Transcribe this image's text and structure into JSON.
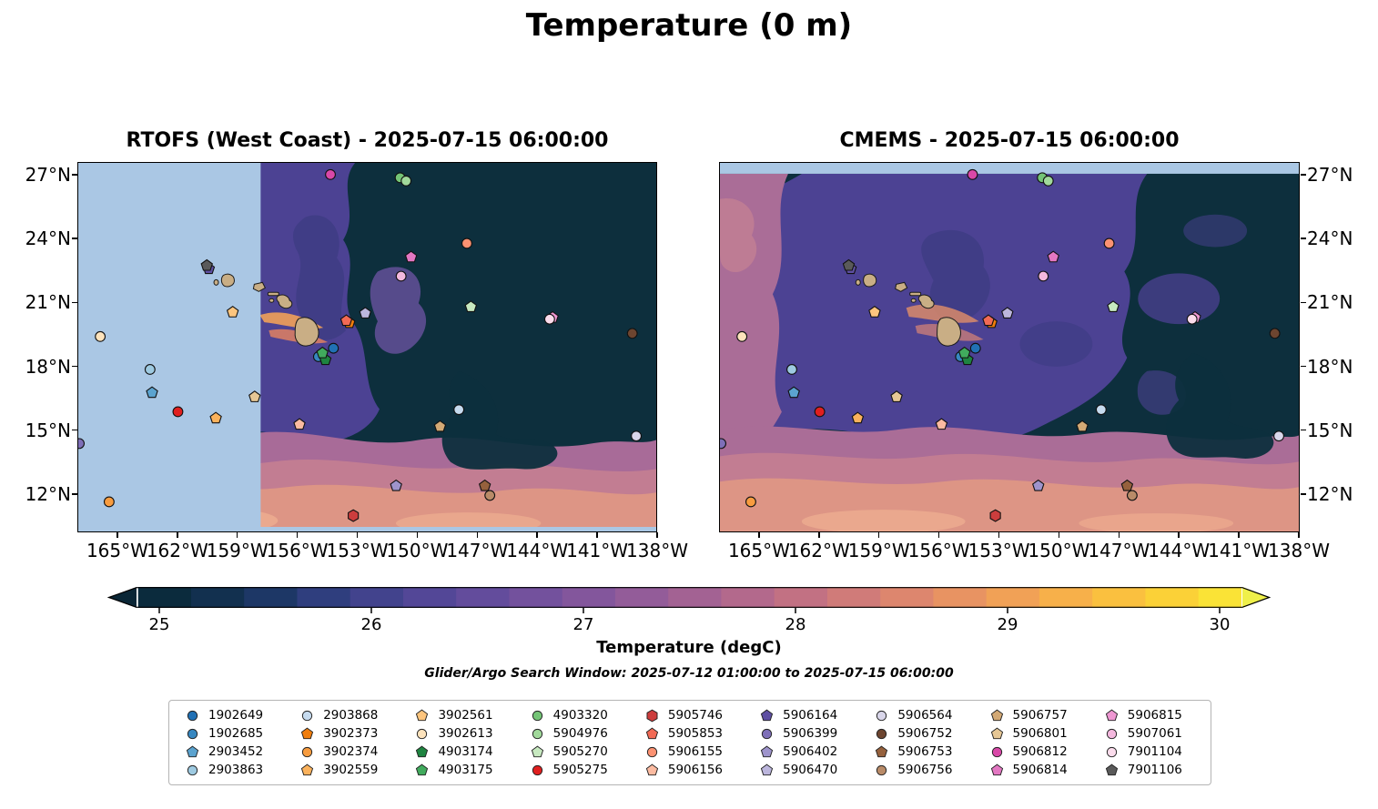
{
  "chart_data": {
    "type": "heatmap",
    "title": "Temperature (0 m)",
    "panels": [
      {
        "title": "RTOFS (West Coast) - 2025-07-15 06:00:00",
        "model": "RTOFS (West Coast)",
        "timestamp": "2025-07-15 06:00:00",
        "no_data": "light-blue region west of ~158W"
      },
      {
        "title": "CMEMS - 2025-07-15 06:00:00",
        "model": "CMEMS",
        "timestamp": "2025-07-15 06:00:00",
        "no_data": "light-blue strip north of ~27.2N"
      }
    ],
    "lon_ticks_w": [
      165,
      162,
      159,
      156,
      153,
      150,
      147,
      144,
      141,
      138
    ],
    "lon_tick_labels": [
      "165°W",
      "162°W",
      "159°W",
      "156°W",
      "153°W",
      "150°W",
      "147°W",
      "144°W",
      "141°W",
      "138°W"
    ],
    "lat_ticks_n": [
      27,
      24,
      21,
      18,
      15,
      12
    ],
    "lat_tick_labels": [
      "27°N",
      "24°N",
      "21°N",
      "18°N",
      "15°N",
      "12°N"
    ],
    "lon_range_w": [
      167,
      138
    ],
    "lat_range_n": [
      10.2,
      27.6
    ],
    "map_colors": {
      "no_data": "#aac7e4",
      "land": "#c9ae85",
      "coast": "#1b1b1b",
      "cold_base": "#0d2f3d"
    },
    "colorbar": {
      "label": "Temperature (degC)",
      "ticks": [
        25,
        26,
        27,
        28,
        29,
        30
      ],
      "range": [
        24.9,
        30.1
      ],
      "extend": "both",
      "under_color": "#0a2636",
      "over_color": "#eff04a",
      "stops": [
        [
          24.9,
          "#0b2b3d"
        ],
        [
          25.15,
          "#12304f"
        ],
        [
          25.4,
          "#1d3766"
        ],
        [
          25.65,
          "#2f3e7e"
        ],
        [
          25.9,
          "#42438d"
        ],
        [
          26.15,
          "#534797"
        ],
        [
          26.4,
          "#634c9c"
        ],
        [
          26.65,
          "#73519d"
        ],
        [
          26.9,
          "#83569c"
        ],
        [
          27.15,
          "#935c99"
        ],
        [
          27.4,
          "#a36293"
        ],
        [
          27.65,
          "#b3698c"
        ],
        [
          27.9,
          "#c27183"
        ],
        [
          28.15,
          "#d07b79"
        ],
        [
          28.4,
          "#dd866e"
        ],
        [
          28.65,
          "#e89362"
        ],
        [
          28.9,
          "#f1a156"
        ],
        [
          29.15,
          "#f7b04a"
        ],
        [
          29.4,
          "#fac03f"
        ],
        [
          29.65,
          "#fbd137"
        ],
        [
          29.9,
          "#fae336"
        ],
        [
          30.1,
          "#f6ef3c"
        ]
      ]
    },
    "search_window": "Glider/Argo Search Window: 2025-07-12 01:00:00 to 2025-07-15 06:00:00",
    "floats": [
      {
        "id": "1902649",
        "shape": "circle",
        "color": "#2171b5",
        "lon_w": 154.2,
        "lat_n": 18.85
      },
      {
        "id": "1902685",
        "shape": "circle",
        "color": "#3787c0",
        "lon_w": 154.95,
        "lat_n": 18.45
      },
      {
        "id": "2903452",
        "shape": "pentagon",
        "color": "#5ba3cf",
        "lon_w": 163.3,
        "lat_n": 16.75
      },
      {
        "id": "2903863",
        "shape": "circle",
        "color": "#9ecae1",
        "lon_w": 163.4,
        "lat_n": 17.85
      },
      {
        "id": "2903868",
        "shape": "circle",
        "color": "#c6dbef",
        "lon_w": 147.9,
        "lat_n": 15.95
      },
      {
        "id": "3902373",
        "shape": "pentagon",
        "color": "#f07d0c",
        "lon_w": 153.4,
        "lat_n": 20.05
      },
      {
        "id": "3902374",
        "shape": "circle",
        "color": "#f89c3f",
        "lon_w": 165.45,
        "lat_n": 11.6
      },
      {
        "id": "3902559",
        "shape": "pentagon",
        "color": "#fbb25c",
        "lon_w": 160.1,
        "lat_n": 15.55
      },
      {
        "id": "3902561",
        "shape": "pentagon",
        "color": "#fdc57e",
        "lon_w": 159.25,
        "lat_n": 20.55
      },
      {
        "id": "3902613",
        "shape": "circle",
        "color": "#fde3bc",
        "lon_w": 165.9,
        "lat_n": 19.4
      },
      {
        "id": "4903174",
        "shape": "pentagon",
        "color": "#1e8440",
        "lon_w": 154.6,
        "lat_n": 18.3
      },
      {
        "id": "4903175",
        "shape": "pentagon",
        "color": "#41ab5d",
        "lon_w": 154.75,
        "lat_n": 18.62
      },
      {
        "id": "4903320",
        "shape": "circle",
        "color": "#74c476",
        "lon_w": 150.85,
        "lat_n": 26.9
      },
      {
        "id": "5904976",
        "shape": "circle",
        "color": "#a1d99b",
        "lon_w": 150.55,
        "lat_n": 26.75
      },
      {
        "id": "5905270",
        "shape": "pentagon",
        "color": "#c7e9c0",
        "lon_w": 147.3,
        "lat_n": 20.8
      },
      {
        "id": "5905275",
        "shape": "circle",
        "color": "#e01f1f",
        "lon_w": 162.0,
        "lat_n": 15.85
      },
      {
        "id": "5905746",
        "shape": "hexagon",
        "color": "#cc3d3d",
        "lon_w": 153.2,
        "lat_n": 10.95
      },
      {
        "id": "5905853",
        "shape": "pentagon",
        "color": "#f26a55",
        "lon_w": 153.55,
        "lat_n": 20.15
      },
      {
        "id": "5906155",
        "shape": "circle",
        "color": "#fc9272",
        "lon_w": 147.5,
        "lat_n": 23.8
      },
      {
        "id": "5906156",
        "shape": "pentagon",
        "color": "#fcbba1",
        "lon_w": 155.9,
        "lat_n": 15.25
      },
      {
        "id": "5906164",
        "shape": "pentagon",
        "color": "#5e4fa2",
        "lon_w": 160.45,
        "lat_n": 22.6
      },
      {
        "id": "5906399",
        "shape": "circle",
        "color": "#7e6fb8",
        "lon_w": 166.95,
        "lat_n": 14.35
      },
      {
        "id": "5906402",
        "shape": "pentagon",
        "color": "#9e94cc",
        "lon_w": 151.05,
        "lat_n": 12.35
      },
      {
        "id": "5906470",
        "shape": "pentagon",
        "color": "#bcb6dd",
        "lon_w": 152.6,
        "lat_n": 20.5
      },
      {
        "id": "5906564",
        "shape": "circle",
        "color": "#d9d6ea",
        "lon_w": 139.0,
        "lat_n": 14.7
      },
      {
        "id": "5906752",
        "shape": "circle",
        "color": "#6d4530",
        "lon_w": 139.2,
        "lat_n": 19.55
      },
      {
        "id": "5906753",
        "shape": "pentagon",
        "color": "#96613d",
        "lon_w": 146.6,
        "lat_n": 12.35
      },
      {
        "id": "5906756",
        "shape": "circle",
        "color": "#b98b68",
        "lon_w": 146.35,
        "lat_n": 11.9
      },
      {
        "id": "5906757",
        "shape": "pentagon",
        "color": "#d3a975",
        "lon_w": 148.85,
        "lat_n": 15.15
      },
      {
        "id": "5906801",
        "shape": "pentagon",
        "color": "#e6c795",
        "lon_w": 158.15,
        "lat_n": 16.55
      },
      {
        "id": "5906812",
        "shape": "circle",
        "color": "#d948a8",
        "lon_w": 154.35,
        "lat_n": 27.05
      },
      {
        "id": "5906814",
        "shape": "pentagon",
        "color": "#e377c2",
        "lon_w": 150.3,
        "lat_n": 23.15
      },
      {
        "id": "5906815",
        "shape": "pentagon",
        "color": "#ee97d2",
        "lon_w": 143.2,
        "lat_n": 20.3
      },
      {
        "id": "5907061",
        "shape": "circle",
        "color": "#f4b8de",
        "lon_w": 150.8,
        "lat_n": 22.25
      },
      {
        "id": "7901104",
        "shape": "circle",
        "color": "#fbdcec",
        "lon_w": 143.35,
        "lat_n": 20.22
      },
      {
        "id": "7901106",
        "shape": "pentagon",
        "color": "#5a5a5a",
        "lon_w": 160.55,
        "lat_n": 22.75
      }
    ]
  }
}
